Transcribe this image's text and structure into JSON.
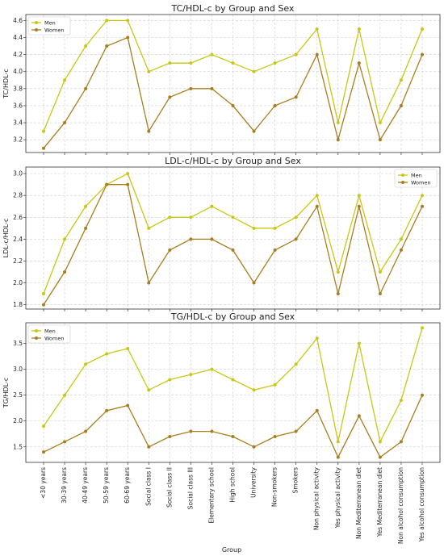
{
  "figure": {
    "xlabel": "Group"
  },
  "colors": {
    "men": "#c8c814",
    "women": "#a87e1e"
  },
  "chart_data": [
    {
      "type": "line",
      "title": "TC/HDL-c by Group and Sex",
      "ylabel": "TC/HDL-c",
      "ylim": [
        3.05,
        4.67
      ],
      "yticks": [
        3.2,
        3.4,
        3.6,
        3.8,
        4.0,
        4.2,
        4.4,
        4.6
      ],
      "grid": true,
      "legend": "top-left",
      "categories": [
        "<30 years",
        "30-39 years",
        "40-49 years",
        "50-59 years",
        "60-69 years",
        "Social class I",
        "Social class II",
        "Social class III",
        "Elementary school",
        "High school",
        "University",
        "Non-smokers",
        "Smokers",
        "Non physical activity",
        "Yes physical activity",
        "Non Mediterranean diet",
        "Yes Mediterranean diet",
        "Non alcohol consumption",
        "Yes alcohol consumption"
      ],
      "series": [
        {
          "name": "Men",
          "values": [
            3.3,
            3.9,
            4.3,
            4.6,
            4.6,
            4.0,
            4.1,
            4.1,
            4.2,
            4.1,
            4.0,
            4.1,
            4.2,
            4.5,
            3.4,
            4.5,
            3.4,
            3.9,
            4.5
          ]
        },
        {
          "name": "Women",
          "values": [
            3.1,
            3.4,
            3.8,
            4.3,
            4.4,
            3.3,
            3.7,
            3.8,
            3.8,
            3.6,
            3.3,
            3.6,
            3.7,
            4.2,
            3.2,
            4.1,
            3.2,
            3.6,
            4.2
          ]
        }
      ]
    },
    {
      "type": "line",
      "title": "LDL-c/HDL-c by Group and Sex",
      "ylabel": "LDL-c/HDL-c",
      "ylim": [
        1.76,
        3.06
      ],
      "yticks": [
        1.8,
        2.0,
        2.2,
        2.4,
        2.6,
        2.8,
        3.0
      ],
      "grid": true,
      "legend": "top-right",
      "categories": [
        "<30 years",
        "30-39 years",
        "40-49 years",
        "50-59 years",
        "60-69 years",
        "Social class I",
        "Social class II",
        "Social class III",
        "Elementary school",
        "High school",
        "University",
        "Non-smokers",
        "Smokers",
        "Non physical activity",
        "Yes physical activity",
        "Non Mediterranean diet",
        "Yes Mediterranean diet",
        "Non alcohol consumption",
        "Yes alcohol consumption"
      ],
      "series": [
        {
          "name": "Men",
          "values": [
            1.9,
            2.4,
            2.7,
            2.9,
            3.0,
            2.5,
            2.6,
            2.6,
            2.7,
            2.6,
            2.5,
            2.5,
            2.6,
            2.8,
            2.1,
            2.8,
            2.1,
            2.4,
            2.8
          ]
        },
        {
          "name": "Women",
          "values": [
            1.8,
            2.1,
            2.5,
            2.9,
            2.9,
            2.0,
            2.3,
            2.4,
            2.4,
            2.3,
            2.0,
            2.3,
            2.4,
            2.7,
            1.9,
            2.7,
            1.9,
            2.3,
            2.7
          ]
        }
      ]
    },
    {
      "type": "line",
      "title": "TG/HDL-c by Group and Sex",
      "ylabel": "TG/HDL-c",
      "ylim": [
        1.2,
        3.9
      ],
      "yticks": [
        1.5,
        2.0,
        2.5,
        3.0,
        3.5
      ],
      "grid": true,
      "legend": "top-left",
      "categories": [
        "<30 years",
        "30-39 years",
        "40-49 years",
        "50-59 years",
        "60-69 years",
        "Social class I",
        "Social class II",
        "Social class III",
        "Elementary school",
        "High school",
        "University",
        "Non-smokers",
        "Smokers",
        "Non physical activity",
        "Yes physical activity",
        "Non Mediterranean diet",
        "Yes Mediterranean diet",
        "Non alcohol consumption",
        "Yes alcohol consumption"
      ],
      "series": [
        {
          "name": "Men",
          "values": [
            1.9,
            2.5,
            3.1,
            3.3,
            3.4,
            2.6,
            2.8,
            2.9,
            3.0,
            2.8,
            2.6,
            2.7,
            3.1,
            3.6,
            1.6,
            3.5,
            1.6,
            2.4,
            3.8
          ]
        },
        {
          "name": "Women",
          "values": [
            1.4,
            1.6,
            1.8,
            2.2,
            2.3,
            1.5,
            1.7,
            1.8,
            1.8,
            1.7,
            1.5,
            1.7,
            1.8,
            2.2,
            1.3,
            2.1,
            1.3,
            1.6,
            2.5
          ]
        }
      ]
    }
  ]
}
